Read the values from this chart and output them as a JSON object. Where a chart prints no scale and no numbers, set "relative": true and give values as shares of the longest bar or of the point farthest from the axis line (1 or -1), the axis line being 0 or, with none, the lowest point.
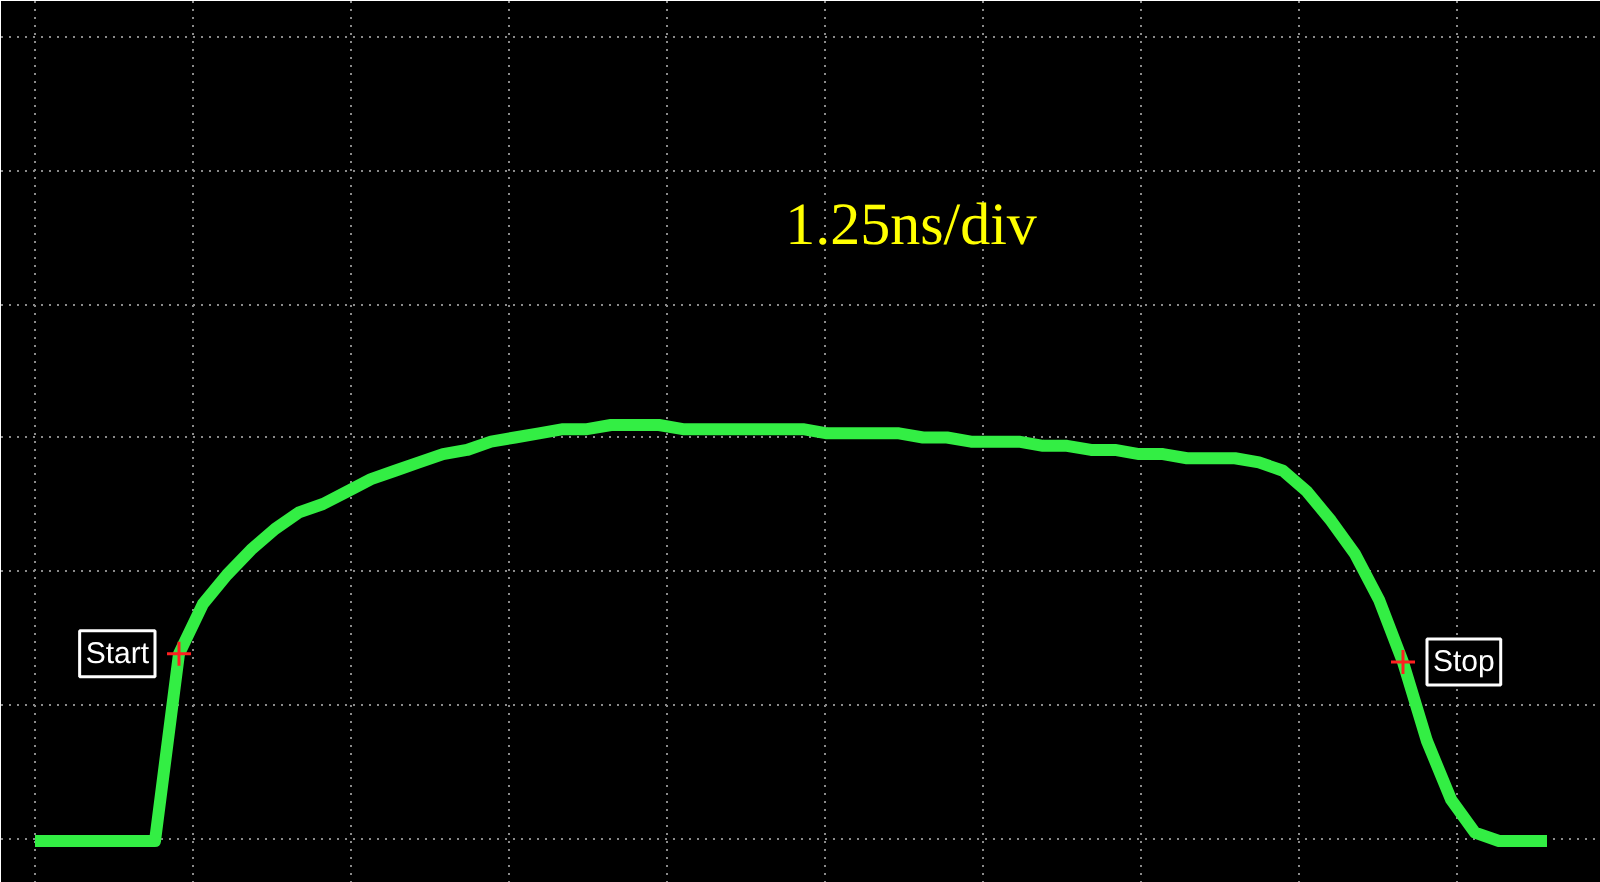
{
  "chart_data": {
    "type": "line",
    "relative": true,
    "grid": true,
    "marker": "none",
    "line_style": "solid",
    "categories": [
      null,
      null,
      null,
      null,
      null,
      null,
      null,
      null,
      null,
      null,
      null,
      null,
      null,
      null,
      null,
      null,
      null,
      null,
      null,
      null,
      null,
      null,
      null,
      null,
      null,
      null,
      null,
      null,
      null,
      null,
      null,
      null,
      null,
      null,
      null,
      null,
      null,
      null,
      null,
      null,
      null,
      null,
      null,
      null,
      null,
      null,
      null,
      null,
      null,
      null,
      null,
      null,
      null,
      null,
      null,
      null,
      null,
      null,
      null,
      null,
      null,
      null,
      null,
      null
    ],
    "series": [
      {
        "color": "#33ee44",
        "values": [
          0,
          0,
          0,
          0,
          0,
          0,
          0.45,
          0.57,
          0.64,
          0.7,
          0.75,
          0.79,
          0.81,
          0.84,
          0.87,
          0.89,
          0.91,
          0.93,
          0.94,
          0.96,
          0.97,
          0.98,
          0.99,
          0.99,
          1.0,
          1.0,
          1.0,
          0.99,
          0.99,
          0.99,
          0.99,
          0.99,
          0.99,
          0.98,
          0.98,
          0.98,
          0.98,
          0.97,
          0.97,
          0.96,
          0.96,
          0.96,
          0.95,
          0.95,
          0.94,
          0.94,
          0.93,
          0.93,
          0.92,
          0.92,
          0.92,
          0.91,
          0.89,
          0.84,
          0.77,
          0.69,
          0.58,
          0.43,
          0.24,
          0.1,
          0.02,
          0,
          0,
          0
        ]
      }
    ],
    "annotations": [
      "1.25ns/div",
      {
        "text": "Start",
        "y": 0.45
      },
      {
        "text": "Stop",
        "y": 0.43
      }
    ]
  }
}
